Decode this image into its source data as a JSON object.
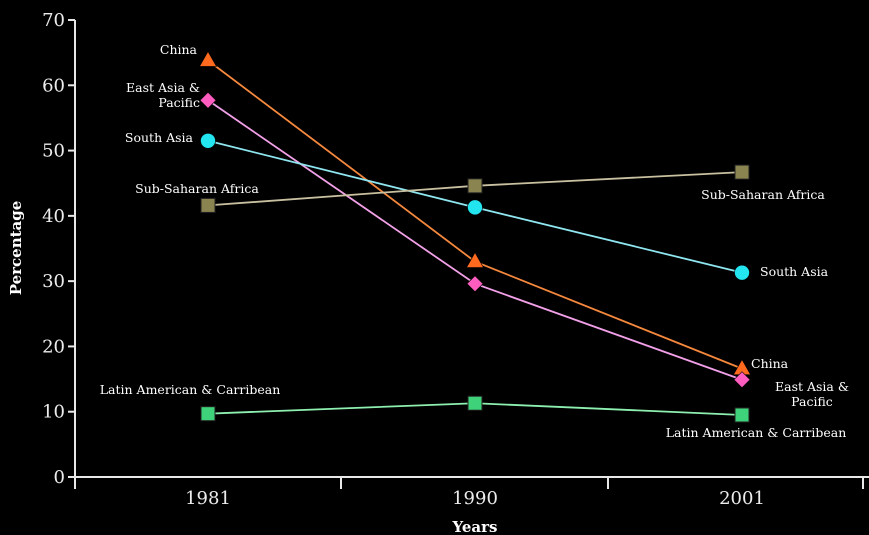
{
  "chart_data": {
    "type": "line",
    "title": "",
    "xlabel": "Years",
    "ylabel": "Percentage",
    "ylim": [
      0,
      70
    ],
    "yticks": [
      "0",
      "10",
      "20",
      "30",
      "40",
      "50",
      "60",
      "70"
    ],
    "categories": [
      "1981",
      "1990",
      "2001"
    ],
    "grid": false,
    "legend": "none",
    "series": [
      {
        "name": "China",
        "values": [
          63.8,
          33.0,
          16.6
        ],
        "color": "#f5883c",
        "marker": "triangle",
        "marker_color": "#ff6a1f",
        "label_start": "China",
        "label_end": "China"
      },
      {
        "name": "East Asia & Pacific",
        "values": [
          57.7,
          29.6,
          14.9
        ],
        "color": "#f2a0e8",
        "marker": "diamond",
        "marker_color": "#ff5cc0",
        "label_start": "East Asia & Pacific",
        "label_end": "East Asia & Pacific"
      },
      {
        "name": "South Asia",
        "values": [
          51.5,
          41.3,
          31.3
        ],
        "color": "#8fe6f0",
        "marker": "circle",
        "marker_color": "#22e5f0",
        "label_start": "South Asia",
        "label_end": "South Asia"
      },
      {
        "name": "Sub-Saharan Africa",
        "values": [
          41.6,
          44.6,
          46.7
        ],
        "color": "#c8c0a0",
        "marker": "square",
        "marker_color": "#8a8450",
        "label_start": "Sub-Saharan Africa",
        "label_end": "Sub-Saharan Africa"
      },
      {
        "name": "Latin American & Carribean",
        "values": [
          9.7,
          11.3,
          9.5
        ],
        "color": "#8ef0b0",
        "marker": "square",
        "marker_color": "#3ed37a",
        "label_start": "Latin American & Carribean",
        "label_end": "Latin American & Carribean"
      }
    ]
  }
}
